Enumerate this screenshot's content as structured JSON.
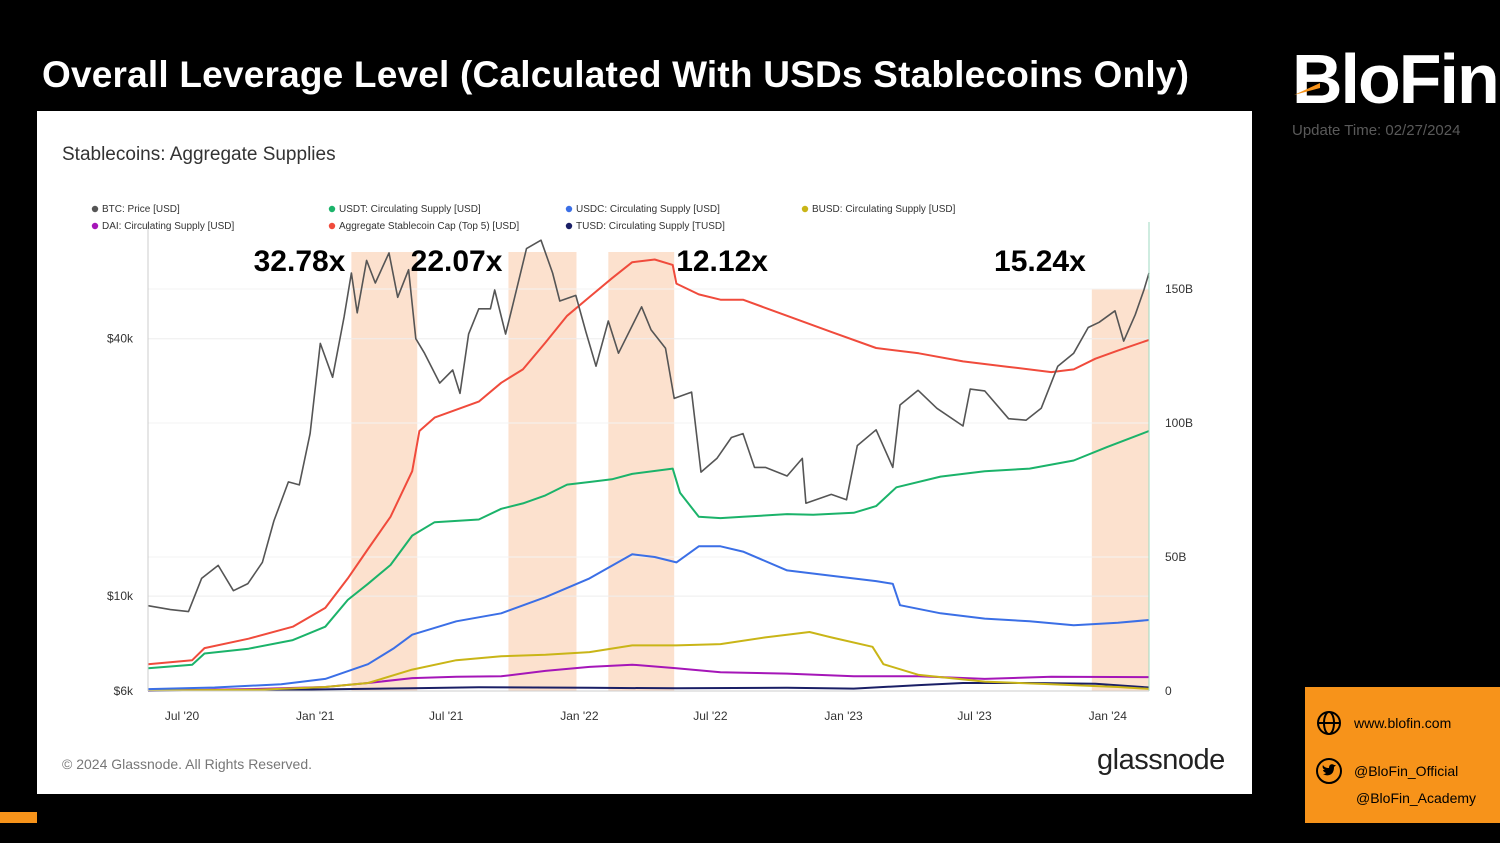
{
  "header": {
    "title": "Overall Leverage Level (Calculated With USDs Stablecoins Only)",
    "logo_text": "BloFin",
    "update_time": "Update Time: 02/27/2024"
  },
  "panel": {
    "subtitle": "Stablecoins: Aggregate Supplies",
    "copyright": "© 2024 Glassnode. All Rights Reserved.",
    "brand": "glassnode"
  },
  "contact": {
    "website": "www.blofin.com",
    "twitter_official": "@BloFin_Official",
    "twitter_academy": "@BloFin_Academy"
  },
  "colors": {
    "btc": "#555555",
    "usdt": "#1bb36a",
    "usdc": "#3b6fe6",
    "busd": "#c9b517",
    "dai": "#a516b8",
    "aggregate": "#f04b3c",
    "tusd": "#1a1f66",
    "highlight": "#fbdcc6",
    "accent": "#f7931a"
  },
  "chart_data": {
    "type": "line",
    "title": "Stablecoins: Aggregate Supplies",
    "x_range": [
      "2020-05-15",
      "2024-02-27"
    ],
    "x_ticks": [
      "Jul '20",
      "Jan '21",
      "Jul '21",
      "Jan '22",
      "Jul '22",
      "Jan '23",
      "Jul '23",
      "Jan '24"
    ],
    "y_left": {
      "scale": "log",
      "range": [
        6000,
        75000
      ],
      "ticks": [
        "$6k",
        "$10k",
        "$40k"
      ],
      "tick_values": [
        6000,
        10000,
        40000
      ]
    },
    "y_right": {
      "range": [
        0,
        175
      ],
      "unit": "B",
      "ticks": [
        "0",
        "50B",
        "100B",
        "150B"
      ],
      "tick_values": [
        0,
        50,
        100,
        150
      ]
    },
    "highlights": [
      {
        "start": "2021-02-20",
        "end": "2021-05-22",
        "label": "32.78x"
      },
      {
        "start": "2021-09-25",
        "end": "2021-12-28",
        "label": "22.07x"
      },
      {
        "start": "2022-02-10",
        "end": "2022-05-12",
        "label": "12.12x"
      },
      {
        "start": "2023-12-10",
        "end": "2024-02-27",
        "label": "15.24x"
      }
    ],
    "series": [
      {
        "name": "BTC: Price [USD]",
        "color_key": "btc",
        "axis": "left",
        "points": [
          [
            "2020-05-15",
            9500
          ],
          [
            "2020-06-15",
            9300
          ],
          [
            "2020-07-10",
            9200
          ],
          [
            "2020-07-28",
            11000
          ],
          [
            "2020-08-20",
            11800
          ],
          [
            "2020-09-10",
            10300
          ],
          [
            "2020-09-30",
            10700
          ],
          [
            "2020-10-20",
            12000
          ],
          [
            "2020-11-05",
            15000
          ],
          [
            "2020-11-25",
            18500
          ],
          [
            "2020-12-10",
            18200
          ],
          [
            "2020-12-25",
            24000
          ],
          [
            "2021-01-08",
            39000
          ],
          [
            "2021-01-25",
            32500
          ],
          [
            "2021-02-10",
            45000
          ],
          [
            "2021-02-20",
            57000
          ],
          [
            "2021-02-28",
            46000
          ],
          [
            "2021-03-13",
            61000
          ],
          [
            "2021-03-25",
            54000
          ],
          [
            "2021-04-13",
            63500
          ],
          [
            "2021-04-25",
            50000
          ],
          [
            "2021-05-10",
            58000
          ],
          [
            "2021-05-20",
            40000
          ],
          [
            "2021-06-01",
            37000
          ],
          [
            "2021-06-22",
            31500
          ],
          [
            "2021-07-10",
            33800
          ],
          [
            "2021-07-20",
            29800
          ],
          [
            "2021-08-01",
            41000
          ],
          [
            "2021-08-15",
            47000
          ],
          [
            "2021-08-31",
            47000
          ],
          [
            "2021-09-06",
            52000
          ],
          [
            "2021-09-21",
            41000
          ],
          [
            "2021-10-01",
            48000
          ],
          [
            "2021-10-20",
            65000
          ],
          [
            "2021-11-09",
            68000
          ],
          [
            "2021-11-25",
            57000
          ],
          [
            "2021-12-05",
            49000
          ],
          [
            "2021-12-27",
            50500
          ],
          [
            "2022-01-10",
            41500
          ],
          [
            "2022-01-24",
            34500
          ],
          [
            "2022-02-10",
            44000
          ],
          [
            "2022-02-24",
            37000
          ],
          [
            "2022-03-28",
            47500
          ],
          [
            "2022-04-10",
            42000
          ],
          [
            "2022-04-30",
            38000
          ],
          [
            "2022-05-12",
            29000
          ],
          [
            "2022-06-05",
            30000
          ],
          [
            "2022-06-18",
            19500
          ],
          [
            "2022-07-10",
            21000
          ],
          [
            "2022-07-30",
            23500
          ],
          [
            "2022-08-15",
            24000
          ],
          [
            "2022-08-31",
            20000
          ],
          [
            "2022-09-15",
            20000
          ],
          [
            "2022-10-15",
            19100
          ],
          [
            "2022-11-05",
            21000
          ],
          [
            "2022-11-10",
            16500
          ],
          [
            "2022-12-15",
            17300
          ],
          [
            "2023-01-05",
            16800
          ],
          [
            "2023-01-20",
            22500
          ],
          [
            "2023-02-15",
            24500
          ],
          [
            "2023-03-10",
            20000
          ],
          [
            "2023-03-20",
            28000
          ],
          [
            "2023-04-14",
            30300
          ],
          [
            "2023-05-10",
            27500
          ],
          [
            "2023-06-15",
            25000
          ],
          [
            "2023-06-25",
            30500
          ],
          [
            "2023-07-15",
            30200
          ],
          [
            "2023-08-17",
            26000
          ],
          [
            "2023-09-10",
            25800
          ],
          [
            "2023-10-01",
            27500
          ],
          [
            "2023-10-24",
            34500
          ],
          [
            "2023-11-15",
            37000
          ],
          [
            "2023-12-05",
            42500
          ],
          [
            "2023-12-20",
            43700
          ],
          [
            "2024-01-11",
            46500
          ],
          [
            "2024-01-23",
            39500
          ],
          [
            "2024-02-08",
            45500
          ],
          [
            "2024-02-20",
            52000
          ],
          [
            "2024-02-27",
            57000
          ]
        ]
      },
      {
        "name": "USDT: Circulating Supply [USD]",
        "color_key": "usdt",
        "axis": "right",
        "points": [
          [
            "2020-05-15",
            8.5
          ],
          [
            "2020-07-15",
            9.8
          ],
          [
            "2020-08-01",
            14
          ],
          [
            "2020-10-01",
            15.8
          ],
          [
            "2020-12-01",
            19
          ],
          [
            "2021-01-15",
            24
          ],
          [
            "2021-02-15",
            34
          ],
          [
            "2021-03-15",
            40
          ],
          [
            "2021-04-15",
            47
          ],
          [
            "2021-05-15",
            58
          ],
          [
            "2021-06-15",
            63
          ],
          [
            "2021-08-15",
            64
          ],
          [
            "2021-09-15",
            68
          ],
          [
            "2021-10-15",
            70
          ],
          [
            "2021-11-15",
            73
          ],
          [
            "2021-12-15",
            77
          ],
          [
            "2022-01-15",
            78
          ],
          [
            "2022-02-15",
            79
          ],
          [
            "2022-03-15",
            81
          ],
          [
            "2022-05-10",
            83
          ],
          [
            "2022-05-20",
            74
          ],
          [
            "2022-06-15",
            65
          ],
          [
            "2022-07-15",
            64.5
          ],
          [
            "2022-08-15",
            65
          ],
          [
            "2022-10-15",
            66
          ],
          [
            "2022-11-20",
            65.8
          ],
          [
            "2023-01-15",
            66.5
          ],
          [
            "2023-02-15",
            69
          ],
          [
            "2023-03-15",
            76
          ],
          [
            "2023-05-15",
            80
          ],
          [
            "2023-07-15",
            82
          ],
          [
            "2023-09-15",
            83
          ],
          [
            "2023-11-15",
            86
          ],
          [
            "2023-12-31",
            91
          ],
          [
            "2024-02-27",
            97
          ]
        ]
      },
      {
        "name": "USDC: Circulating Supply [USD]",
        "color_key": "usdc",
        "axis": "right",
        "points": [
          [
            "2020-05-15",
            0.7
          ],
          [
            "2020-08-15",
            1.3
          ],
          [
            "2020-11-15",
            2.5
          ],
          [
            "2021-01-15",
            4.5
          ],
          [
            "2021-03-15",
            10
          ],
          [
            "2021-04-20",
            16
          ],
          [
            "2021-05-15",
            21
          ],
          [
            "2021-07-15",
            26
          ],
          [
            "2021-09-15",
            29
          ],
          [
            "2021-11-15",
            35
          ],
          [
            "2022-01-15",
            42
          ],
          [
            "2022-03-15",
            51
          ],
          [
            "2022-04-15",
            50
          ],
          [
            "2022-05-15",
            48
          ],
          [
            "2022-06-15",
            54
          ],
          [
            "2022-07-15",
            54
          ],
          [
            "2022-08-15",
            52
          ],
          [
            "2022-10-15",
            45
          ],
          [
            "2022-12-15",
            43
          ],
          [
            "2023-02-15",
            41
          ],
          [
            "2023-03-10",
            40
          ],
          [
            "2023-03-20",
            32
          ],
          [
            "2023-05-15",
            29
          ],
          [
            "2023-07-15",
            27
          ],
          [
            "2023-09-15",
            26
          ],
          [
            "2023-11-15",
            24.5
          ],
          [
            "2024-01-15",
            25.5
          ],
          [
            "2024-02-27",
            26.5
          ]
        ]
      },
      {
        "name": "BUSD: Circulating Supply [USD]",
        "color_key": "busd",
        "axis": "right",
        "points": [
          [
            "2020-05-15",
            0.2
          ],
          [
            "2020-10-15",
            0.5
          ],
          [
            "2021-01-15",
            1.5
          ],
          [
            "2021-03-15",
            3
          ],
          [
            "2021-05-15",
            8
          ],
          [
            "2021-07-15",
            11.5
          ],
          [
            "2021-09-15",
            13
          ],
          [
            "2021-11-15",
            13.5
          ],
          [
            "2022-01-15",
            14.5
          ],
          [
            "2022-03-15",
            17
          ],
          [
            "2022-05-15",
            17
          ],
          [
            "2022-07-15",
            17.5
          ],
          [
            "2022-09-15",
            20
          ],
          [
            "2022-11-15",
            22
          ],
          [
            "2022-12-15",
            20
          ],
          [
            "2023-02-10",
            16.5
          ],
          [
            "2023-02-25",
            10
          ],
          [
            "2023-04-15",
            6
          ],
          [
            "2023-07-15",
            3.5
          ],
          [
            "2023-10-15",
            2.5
          ],
          [
            "2024-01-15",
            1.5
          ],
          [
            "2024-02-27",
            0.8
          ]
        ]
      },
      {
        "name": "DAI: Circulating Supply [USD]",
        "color_key": "dai",
        "axis": "right",
        "points": [
          [
            "2020-05-15",
            0.15
          ],
          [
            "2020-10-15",
            0.8
          ],
          [
            "2021-01-15",
            1.5
          ],
          [
            "2021-03-15",
            3
          ],
          [
            "2021-05-15",
            4.8
          ],
          [
            "2021-07-15",
            5.3
          ],
          [
            "2021-09-15",
            5.5
          ],
          [
            "2021-11-15",
            7.5
          ],
          [
            "2022-01-15",
            9
          ],
          [
            "2022-03-15",
            9.8
          ],
          [
            "2022-05-15",
            8.5
          ],
          [
            "2022-07-15",
            7
          ],
          [
            "2022-10-15",
            6.5
          ],
          [
            "2023-01-15",
            5.5
          ],
          [
            "2023-04-15",
            5.5
          ],
          [
            "2023-07-15",
            4.5
          ],
          [
            "2023-10-15",
            5.3
          ],
          [
            "2024-02-27",
            5.2
          ]
        ]
      },
      {
        "name": "Aggregate Stablecoin Cap (Top 5) [USD]",
        "color_key": "aggregate",
        "axis": "right",
        "points": [
          [
            "2020-05-15",
            10
          ],
          [
            "2020-07-15",
            11.5
          ],
          [
            "2020-08-01",
            16
          ],
          [
            "2020-10-01",
            19.5
          ],
          [
            "2020-12-01",
            24
          ],
          [
            "2021-01-15",
            31
          ],
          [
            "2021-02-15",
            42
          ],
          [
            "2021-03-15",
            53
          ],
          [
            "2021-04-15",
            65
          ],
          [
            "2021-05-15",
            82
          ],
          [
            "2021-05-25",
            97
          ],
          [
            "2021-06-15",
            102
          ],
          [
            "2021-08-15",
            108
          ],
          [
            "2021-09-15",
            115
          ],
          [
            "2021-10-15",
            120
          ],
          [
            "2021-11-15",
            130
          ],
          [
            "2021-12-15",
            140
          ],
          [
            "2022-01-15",
            147
          ],
          [
            "2022-02-15",
            154
          ],
          [
            "2022-03-15",
            160
          ],
          [
            "2022-04-15",
            161
          ],
          [
            "2022-05-10",
            159
          ],
          [
            "2022-05-15",
            152
          ],
          [
            "2022-06-15",
            148
          ],
          [
            "2022-07-15",
            146
          ],
          [
            "2022-08-15",
            146
          ],
          [
            "2022-10-15",
            140
          ],
          [
            "2022-12-15",
            134
          ],
          [
            "2023-02-15",
            128
          ],
          [
            "2023-04-15",
            126
          ],
          [
            "2023-06-15",
            123
          ],
          [
            "2023-08-15",
            121
          ],
          [
            "2023-10-15",
            119
          ],
          [
            "2023-11-15",
            120
          ],
          [
            "2023-12-15",
            124
          ],
          [
            "2024-01-15",
            127
          ],
          [
            "2024-02-27",
            131
          ]
        ]
      },
      {
        "name": "TUSD: Circulating Supply [TUSD]",
        "color_key": "tusd",
        "axis": "right",
        "points": [
          [
            "2020-05-15",
            0.1
          ],
          [
            "2020-11-15",
            0.4
          ],
          [
            "2021-05-15",
            1
          ],
          [
            "2021-08-15",
            1.4
          ],
          [
            "2022-01-15",
            1.2
          ],
          [
            "2022-05-15",
            1
          ],
          [
            "2022-10-15",
            1.2
          ],
          [
            "2023-01-15",
            0.9
          ],
          [
            "2023-04-15",
            2.2
          ],
          [
            "2023-06-15",
            3
          ],
          [
            "2023-09-15",
            3
          ],
          [
            "2023-12-15",
            2.7
          ],
          [
            "2024-02-27",
            1.3
          ]
        ]
      }
    ]
  }
}
